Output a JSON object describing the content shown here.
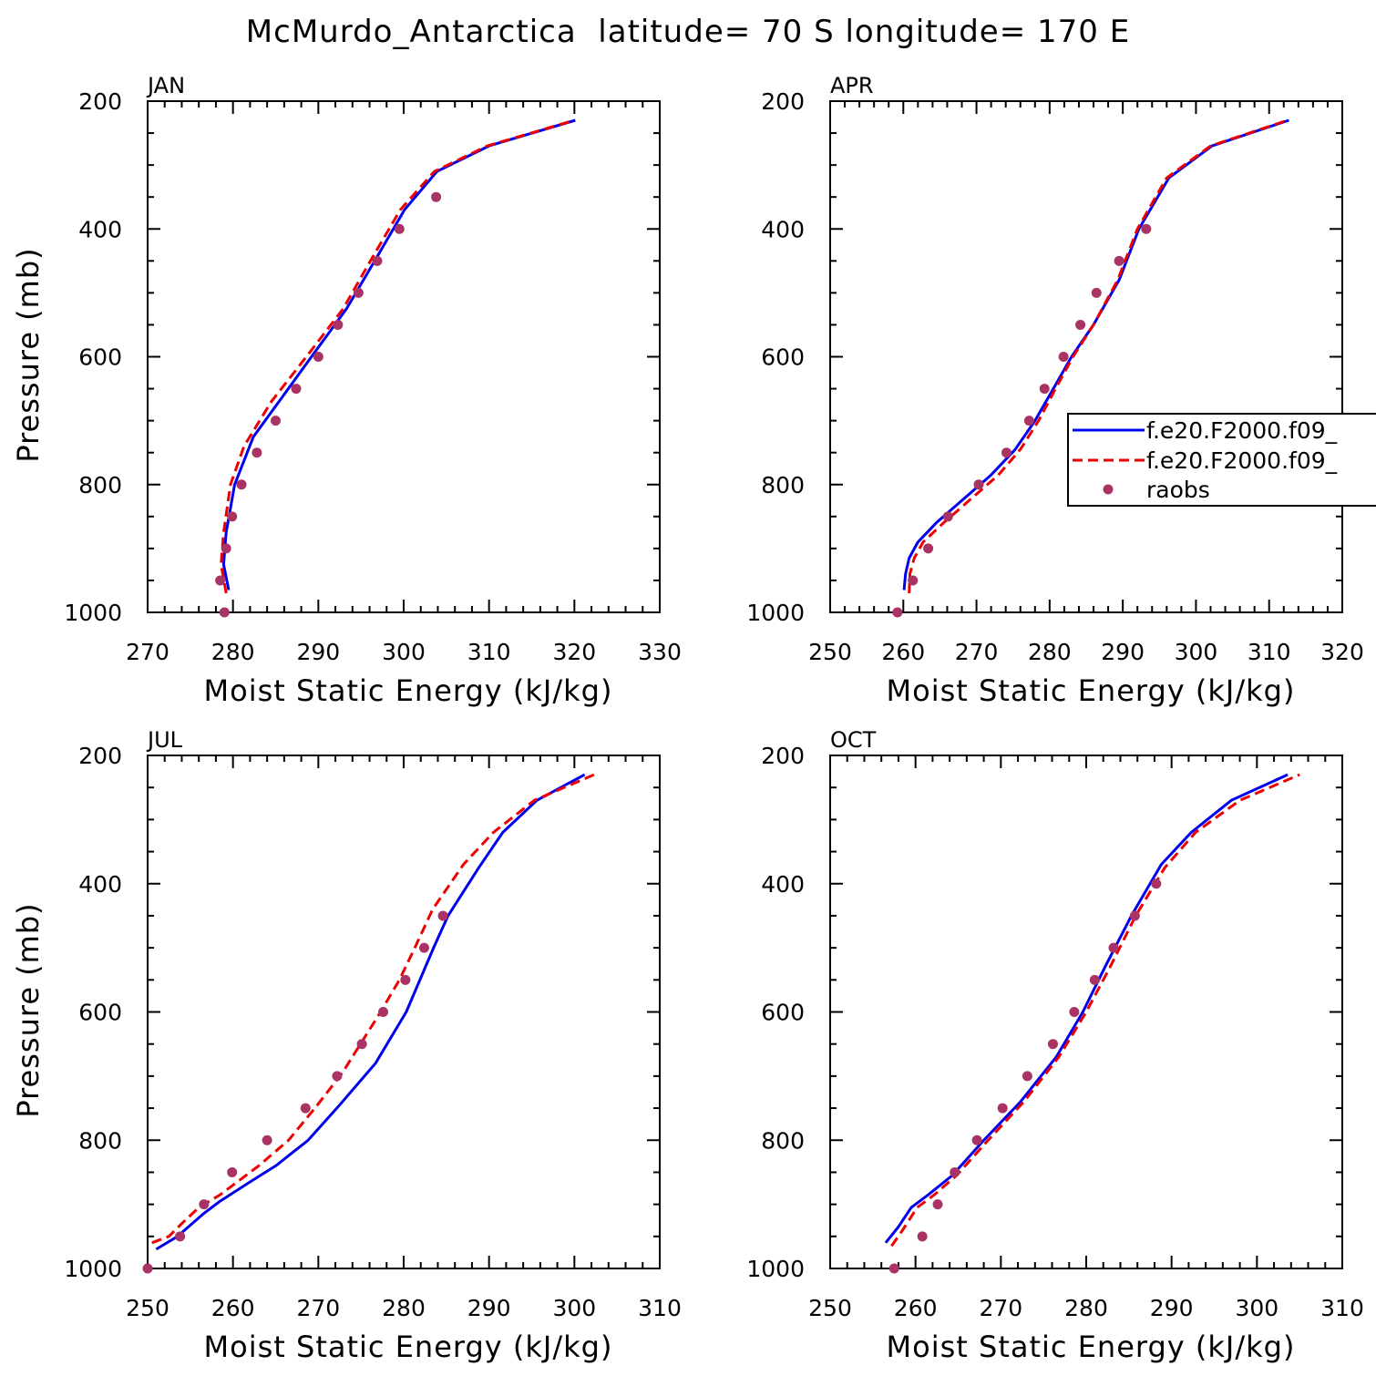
{
  "figure": {
    "title": "McMurdo_Antarctica  latitude= 70 S longitude= 170 E"
  },
  "legend": {
    "entries": [
      {
        "label": "f.e20.F2000.f09_",
        "style": "solid",
        "color": "#0000ee"
      },
      {
        "label": "f.e20.F2000.f09_",
        "style": "dashed",
        "color": "#ee0000"
      },
      {
        "label": "raobs",
        "style": "dots",
        "color": "#aa3366"
      }
    ]
  },
  "chart_data": [
    {
      "type": "line",
      "panel": "JAN",
      "xlabel": "Moist Static Energy (kJ/kg)",
      "ylabel": "Pressure (mb)",
      "xlim": [
        270,
        330
      ],
      "ylim": [
        1000,
        200
      ],
      "xticks": [
        270,
        280,
        290,
        300,
        310,
        320,
        330
      ],
      "yticks": [
        200,
        400,
        600,
        800,
        1000
      ],
      "series": [
        {
          "style": "solid",
          "color": "#0000ee",
          "x": [
            279.5,
            278.9,
            279.2,
            280.2,
            282.4,
            285.4,
            289.2,
            293.3,
            296.6,
            300.1,
            303.9,
            310.0,
            320.1
          ],
          "y": [
            965,
            925,
            875,
            800,
            725,
            670,
            600,
            525,
            450,
            370,
            310,
            270,
            230
          ]
        },
        {
          "style": "dashed",
          "color": "#ee0000",
          "x": [
            279.2,
            278.6,
            278.9,
            279.7,
            281.3,
            284.5,
            288.6,
            292.9,
            296.1,
            299.6,
            303.6,
            309.8,
            320.0
          ],
          "y": [
            970,
            925,
            875,
            800,
            740,
            670,
            600,
            525,
            450,
            370,
            310,
            270,
            230
          ]
        },
        {
          "style": "dots",
          "color": "#aa3366",
          "x": [
            279.0,
            278.5,
            279.2,
            279.9,
            281.0,
            282.8,
            285.0,
            287.4,
            290.0,
            292.3,
            294.7,
            296.9,
            299.5,
            303.8
          ],
          "y": [
            1000,
            950,
            900,
            850,
            800,
            750,
            700,
            650,
            600,
            550,
            500,
            450,
            400,
            350
          ]
        }
      ]
    },
    {
      "type": "line",
      "panel": "APR",
      "xlabel": "Moist Static Energy (kJ/kg)",
      "ylabel": "",
      "xlim": [
        250,
        320
      ],
      "ylim": [
        1000,
        200
      ],
      "xticks": [
        250,
        260,
        270,
        280,
        290,
        300,
        310,
        320
      ],
      "yticks": [
        200,
        400,
        600,
        800,
        1000
      ],
      "series": [
        {
          "style": "solid",
          "color": "#0000ee",
          "x": [
            260.1,
            260.3,
            260.8,
            262.0,
            264.5,
            268.0,
            272.0,
            275.3,
            278.0,
            280.5,
            283.0,
            286.0,
            289.5,
            292.2,
            296.3,
            302.2,
            312.7
          ],
          "y": [
            965,
            940,
            915,
            890,
            860,
            825,
            785,
            745,
            700,
            650,
            600,
            550,
            480,
            400,
            320,
            270,
            230
          ]
        },
        {
          "style": "dashed",
          "color": "#ee0000",
          "x": [
            260.8,
            260.9,
            261.5,
            262.7,
            265.5,
            269.0,
            273.0,
            276.0,
            278.5,
            280.8,
            283.2,
            286.0,
            289.3,
            292.0,
            296.0,
            302.0,
            312.5
          ],
          "y": [
            970,
            940,
            915,
            890,
            860,
            825,
            785,
            745,
            700,
            650,
            600,
            550,
            480,
            400,
            320,
            270,
            230
          ]
        },
        {
          "style": "dots",
          "color": "#aa3366",
          "x": [
            259.2,
            261.3,
            263.4,
            266.1,
            270.3,
            274.1,
            277.2,
            279.3,
            281.9,
            284.2,
            286.4,
            289.5,
            293.2
          ],
          "y": [
            1000,
            950,
            900,
            850,
            800,
            750,
            700,
            650,
            600,
            550,
            500,
            450,
            400
          ]
        }
      ]
    },
    {
      "type": "line",
      "panel": "JUL",
      "xlabel": "Moist Static Energy (kJ/kg)",
      "ylabel": "Pressure (mb)",
      "xlim": [
        250,
        310
      ],
      "ylim": [
        1000,
        200
      ],
      "xticks": [
        250,
        260,
        270,
        280,
        290,
        300,
        310
      ],
      "yticks": [
        200,
        400,
        600,
        800,
        1000
      ],
      "series": [
        {
          "style": "solid",
          "color": "#0000ee",
          "x": [
            251.0,
            253.5,
            256.5,
            258.5,
            262.0,
            265.0,
            268.8,
            272.5,
            276.7,
            280.3,
            283.5,
            285.2,
            288.8,
            291.6,
            295.6,
            301.2
          ],
          "y": [
            970,
            950,
            915,
            895,
            865,
            840,
            800,
            745,
            680,
            600,
            500,
            450,
            375,
            320,
            270,
            230
          ]
        },
        {
          "style": "dashed",
          "color": "#ee0000",
          "x": [
            250.5,
            252.5,
            254.0,
            256.0,
            258.5,
            263.0,
            266.5,
            269.6,
            272.8,
            277.3,
            279.5,
            281.3,
            283.4,
            287.0,
            290.5,
            295.3,
            302.3
          ],
          "y": [
            960,
            950,
            930,
            905,
            885,
            840,
            800,
            750,
            695,
            600,
            550,
            500,
            440,
            370,
            320,
            270,
            230
          ]
        },
        {
          "style": "dots",
          "color": "#aa3366",
          "x": [
            250.0,
            253.8,
            256.6,
            259.9,
            264.0,
            268.5,
            272.2,
            275.1,
            277.6,
            280.2,
            282.4,
            284.6
          ],
          "y": [
            1000,
            950,
            900,
            850,
            800,
            750,
            700,
            650,
            600,
            550,
            500,
            450
          ]
        }
      ]
    },
    {
      "type": "line",
      "panel": "OCT",
      "xlabel": "Moist Static Energy (kJ/kg)",
      "ylabel": "",
      "xlim": [
        250,
        310
      ],
      "ylim": [
        1000,
        200
      ],
      "xticks": [
        250,
        260,
        270,
        280,
        290,
        300,
        310
      ],
      "yticks": [
        200,
        400,
        600,
        800,
        1000
      ],
      "series": [
        {
          "style": "solid",
          "color": "#0000ee",
          "x": [
            256.5,
            258.0,
            259.5,
            261.5,
            264.3,
            268.0,
            272.3,
            276.5,
            279.6,
            282.2,
            285.3,
            288.8,
            292.3,
            297.0,
            303.6
          ],
          "y": [
            960,
            935,
            905,
            885,
            855,
            800,
            740,
            670,
            600,
            530,
            450,
            370,
            320,
            270,
            230
          ]
        },
        {
          "style": "dashed",
          "color": "#ee0000",
          "x": [
            257.2,
            258.5,
            260.2,
            262.2,
            264.8,
            268.5,
            272.7,
            276.8,
            280.0,
            282.8,
            285.8,
            289.2,
            292.8,
            298.0,
            305.0
          ],
          "y": [
            965,
            940,
            905,
            885,
            855,
            800,
            740,
            670,
            600,
            530,
            450,
            375,
            320,
            270,
            230
          ]
        },
        {
          "style": "dots",
          "color": "#aa3366",
          "x": [
            257.5,
            260.8,
            262.6,
            264.6,
            267.2,
            270.2,
            273.1,
            276.1,
            278.6,
            281.0,
            283.2,
            285.7,
            288.2
          ],
          "y": [
            1000,
            950,
            900,
            850,
            800,
            750,
            700,
            650,
            600,
            550,
            500,
            450,
            400
          ]
        }
      ]
    }
  ]
}
